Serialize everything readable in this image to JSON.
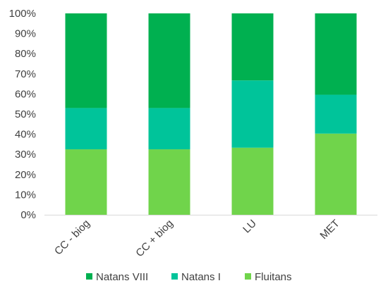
{
  "chart_data": {
    "type": "bar",
    "stacked": true,
    "percent": true,
    "categories": [
      "CC - biog",
      "CC + biog",
      "LU",
      "MET"
    ],
    "series": [
      {
        "name": "Fluitans",
        "values": [
          32.5,
          32.5,
          33.3,
          40.3
        ],
        "color": "#70d44b"
      },
      {
        "name": "Natans I",
        "values": [
          20.5,
          20.5,
          33.4,
          19.3
        ],
        "color": "#00c49a"
      },
      {
        "name": "Natans VIII",
        "values": [
          47.0,
          47.0,
          33.3,
          40.4
        ],
        "color": "#00b050"
      }
    ],
    "legend_order": [
      "Natans VIII",
      "Natans I",
      "Fluitans"
    ],
    "y_ticks": [
      "0%",
      "10%",
      "20%",
      "30%",
      "40%",
      "50%",
      "60%",
      "70%",
      "80%",
      "90%",
      "100%"
    ],
    "ylim": [
      0,
      100
    ],
    "title": "",
    "xlabel": "",
    "ylabel": "",
    "legend_position": "bottom",
    "grid": false
  }
}
